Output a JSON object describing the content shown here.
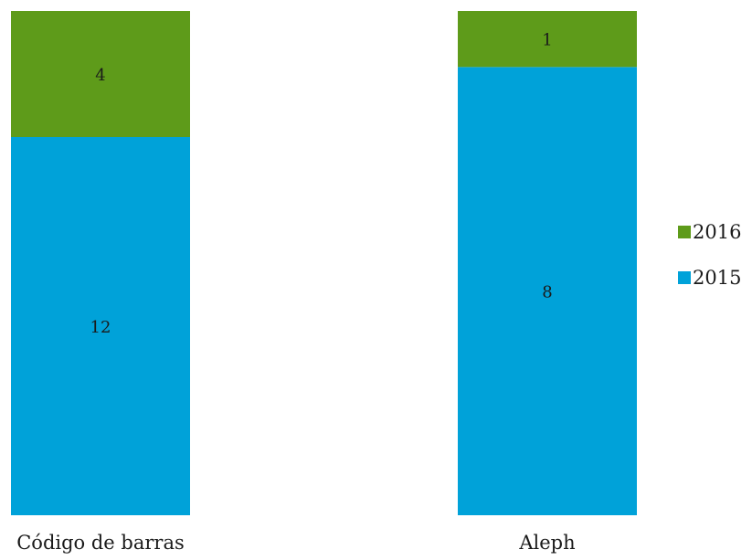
{
  "chart_data": {
    "type": "bar",
    "stacked": true,
    "normalized_100_percent": true,
    "categories": [
      "Código de barras",
      "Aleph"
    ],
    "series": [
      {
        "name": "2015",
        "values": [
          12,
          8
        ],
        "color": "#00a2d9"
      },
      {
        "name": "2016",
        "values": [
          4,
          1
        ],
        "color": "#5e9b1a"
      }
    ],
    "legend": {
      "position": "right",
      "order": [
        "2016",
        "2015"
      ]
    },
    "grid": false,
    "data_labels": true
  }
}
